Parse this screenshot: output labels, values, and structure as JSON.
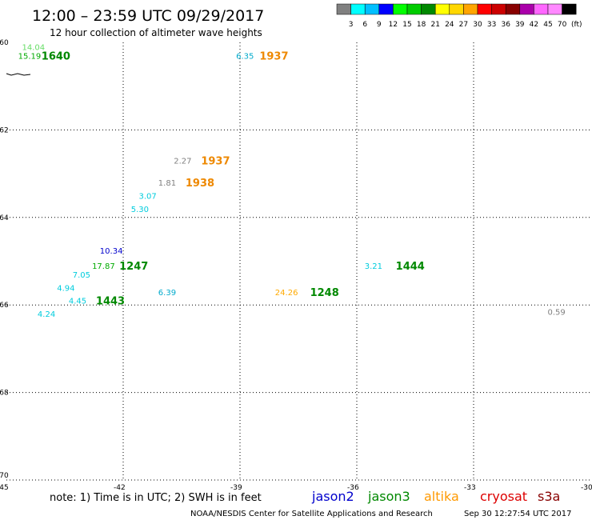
{
  "header": {
    "title": "12:00 – 23:59 UTC 09/29/2017",
    "subtitle": "12 hour collection of altimeter wave heights"
  },
  "legend_scale": {
    "labels": [
      "3",
      "6",
      "9",
      "12",
      "15",
      "18",
      "21",
      "24",
      "27",
      "30",
      "33",
      "36",
      "39",
      "42",
      "45",
      "70"
    ],
    "unit": "(ft)",
    "colors": [
      "#808080",
      "#00ffff",
      "#00bfff",
      "#0000ff",
      "#00ff00",
      "#00cc00",
      "#008800",
      "#ffff00",
      "#ffd700",
      "#ffa500",
      "#ff0000",
      "#cc0000",
      "#880000",
      "#aa00aa",
      "#ff66ff",
      "#ff88ff",
      "#000000"
    ]
  },
  "footer": {
    "note": "note:  1) Time is in UTC;  2) SWH is in feet",
    "credit": "NOAA/NESDIS Center for Satellite Applications and Research",
    "timestamp": "Sep 30 12:27:54 UTC 2017",
    "satellites": [
      {
        "name": "jason2",
        "color": "#0000cc"
      },
      {
        "name": "jason3",
        "color": "#008800"
      },
      {
        "name": "altika",
        "color": "#ff9900"
      },
      {
        "name": "cryosat",
        "color": "#dd0000"
      },
      {
        "name": "s3a",
        "color": "#880000"
      }
    ]
  },
  "chart_data": {
    "type": "scatter",
    "title": "12:00 – 23:59 UTC 09/29/2017",
    "subtitle": "12 hour collection of altimeter wave heights",
    "xlim": [
      -45,
      -30
    ],
    "ylim": [
      -70,
      -60
    ],
    "x_ticks": [
      -45,
      -42,
      -39,
      -36,
      -33,
      -30
    ],
    "y_ticks": [
      -60,
      -62,
      -64,
      -66,
      -68,
      -70
    ],
    "grid": "dotted",
    "swh_points": [
      {
        "lon": -44.6,
        "lat": -60.1,
        "value": "14.04",
        "color": "#66dd66"
      },
      {
        "lon": -44.7,
        "lat": -60.3,
        "value": "15.19",
        "color": "#00aa00"
      },
      {
        "lon": -39.1,
        "lat": -60.3,
        "value": "6.35",
        "color": "#00aacc"
      },
      {
        "lon": -40.7,
        "lat": -62.7,
        "value": "2.27",
        "color": "#808080"
      },
      {
        "lon": -41.1,
        "lat": -63.2,
        "value": "1.81",
        "color": "#808080"
      },
      {
        "lon": -41.6,
        "lat": -63.5,
        "value": "3.07",
        "color": "#00ccdd"
      },
      {
        "lon": -41.8,
        "lat": -63.8,
        "value": "5.30",
        "color": "#00ccdd"
      },
      {
        "lon": -42.6,
        "lat": -64.75,
        "value": "10.34",
        "color": "#0000cc"
      },
      {
        "lon": -42.8,
        "lat": -65.1,
        "value": "17.87",
        "color": "#00aa00"
      },
      {
        "lon": -43.3,
        "lat": -65.3,
        "value": "7.05",
        "color": "#00ccdd"
      },
      {
        "lon": -43.7,
        "lat": -65.6,
        "value": "4.94",
        "color": "#00ccdd"
      },
      {
        "lon": -43.4,
        "lat": -65.9,
        "value": "4.45",
        "color": "#00ccdd"
      },
      {
        "lon": -41.1,
        "lat": -65.7,
        "value": "6.39",
        "color": "#00aacc"
      },
      {
        "lon": -44.2,
        "lat": -66.2,
        "value": "4.24",
        "color": "#00ccdd"
      },
      {
        "lon": -38.1,
        "lat": -65.7,
        "value": "24.26",
        "color": "#ffaa00"
      },
      {
        "lon": -35.8,
        "lat": -65.1,
        "value": "3.21",
        "color": "#00ccdd"
      },
      {
        "lon": -31.1,
        "lat": -66.15,
        "value": "0.59",
        "color": "#808080"
      }
    ],
    "time_labels": [
      {
        "lon": -44.1,
        "lat": -60.3,
        "value": "1640",
        "color": "#008800"
      },
      {
        "lon": -38.5,
        "lat": -60.3,
        "value": "1937",
        "color": "#ee8800"
      },
      {
        "lon": -40.0,
        "lat": -62.7,
        "value": "1937",
        "color": "#ee8800"
      },
      {
        "lon": -40.4,
        "lat": -63.2,
        "value": "1938",
        "color": "#ee8800"
      },
      {
        "lon": -42.1,
        "lat": -65.1,
        "value": "1247",
        "color": "#008800"
      },
      {
        "lon": -42.7,
        "lat": -65.9,
        "value": "1443",
        "color": "#008800"
      },
      {
        "lon": -37.2,
        "lat": -65.7,
        "value": "1248",
        "color": "#008800"
      },
      {
        "lon": -35.0,
        "lat": -65.1,
        "value": "1444",
        "color": "#008800"
      }
    ]
  }
}
